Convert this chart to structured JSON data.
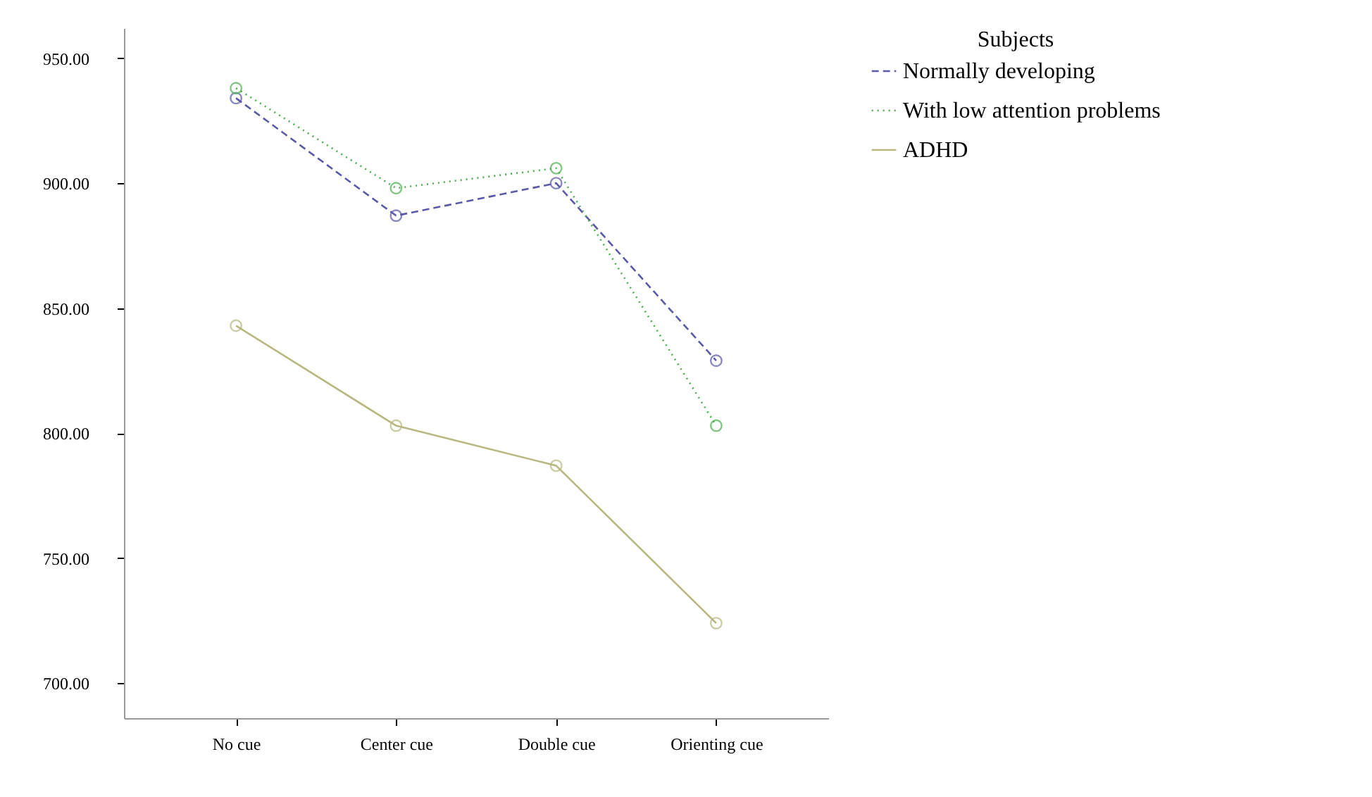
{
  "chart_data": {
    "type": "line",
    "categories": [
      "No cue",
      "Center cue",
      "Double cue",
      "Orienting cue"
    ],
    "series": [
      {
        "name": "Normally developing",
        "color": "#5a5aa8",
        "line_style": "dashed",
        "values": [
          934,
          887,
          900,
          829
        ]
      },
      {
        "name": "With low attention problems",
        "color": "#4caf50",
        "line_style": "dotted",
        "values": [
          938,
          898,
          906,
          803
        ]
      },
      {
        "name": "ADHD",
        "color": "#b8b880",
        "line_style": "solid",
        "values": [
          843,
          803,
          787,
          724
        ]
      }
    ],
    "ylim": [
      686,
      962
    ],
    "yticks": [
      {
        "value": 700,
        "label": "700.00"
      },
      {
        "value": 750,
        "label": "750.00"
      },
      {
        "value": 800,
        "label": "800.00"
      },
      {
        "value": 850,
        "label": "850.00"
      },
      {
        "value": 900,
        "label": "900.00"
      },
      {
        "value": 950,
        "label": "950.00"
      }
    ],
    "legend_title": "Subjects",
    "legend": "right",
    "marker": "circle",
    "grid": false
  }
}
